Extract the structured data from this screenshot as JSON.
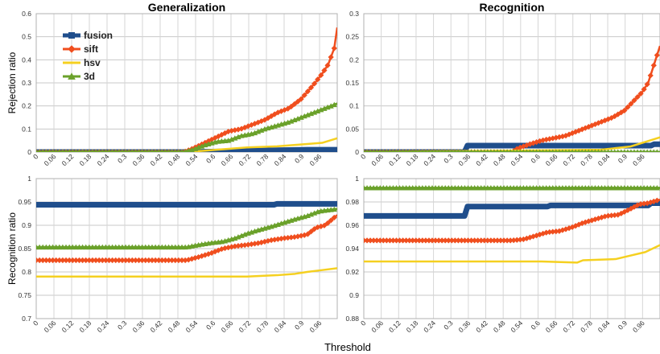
{
  "chart_data": [
    {
      "type": "line",
      "title": "Generalization",
      "xlabel": "",
      "ylabel": "Rejection ratio",
      "ylim": [
        0,
        0.6
      ],
      "yticks": [
        "0",
        "0.1",
        "0.2",
        "0.3",
        "0.4",
        "0.5",
        "0.6"
      ],
      "xlim": [
        0,
        1
      ],
      "xticks": [
        "0",
        "0.06",
        "0.12",
        "0.18",
        "0.24",
        "0.3",
        "0.36",
        "0.42",
        "0.48",
        "0.54",
        "0.6",
        "0.66",
        "0.72",
        "0.78",
        "0.84",
        "0.9",
        "0.96"
      ],
      "grid": true,
      "legend_position": "top-left",
      "series": [
        {
          "name": "fusion",
          "color": "#1f4e8c",
          "marker": "square",
          "x": [
            0,
            0.5,
            0.6,
            0.7,
            0.8,
            0.9,
            1.0
          ],
          "y": [
            0,
            0,
            0.002,
            0.005,
            0.008,
            0.01,
            0.01
          ]
        },
        {
          "name": "sift",
          "color": "#f04e1e",
          "marker": "diamond",
          "x": [
            0,
            0.49,
            0.52,
            0.56,
            0.6,
            0.64,
            0.68,
            0.72,
            0.76,
            0.8,
            0.84,
            0.88,
            0.92,
            0.95,
            0.97,
            0.99,
            1.0
          ],
          "y": [
            0,
            0,
            0.015,
            0.04,
            0.065,
            0.09,
            0.1,
            0.12,
            0.14,
            0.17,
            0.19,
            0.23,
            0.29,
            0.34,
            0.38,
            0.45,
            0.54
          ]
        },
        {
          "name": "hsv",
          "color": "#f5d020",
          "marker": "none",
          "x": [
            0,
            0.5,
            0.6,
            0.7,
            0.8,
            0.9,
            0.95,
            1.0
          ],
          "y": [
            0,
            0,
            0.01,
            0.02,
            0.025,
            0.035,
            0.04,
            0.06
          ]
        },
        {
          "name": "3d",
          "color": "#6aa12a",
          "marker": "triangle",
          "x": [
            0,
            0.49,
            0.52,
            0.56,
            0.6,
            0.64,
            0.68,
            0.72,
            0.76,
            0.8,
            0.84,
            0.88,
            0.92,
            0.96,
            1.0
          ],
          "y": [
            0,
            0,
            0.01,
            0.03,
            0.045,
            0.05,
            0.07,
            0.08,
            0.1,
            0.115,
            0.13,
            0.15,
            0.17,
            0.19,
            0.21
          ]
        }
      ]
    },
    {
      "type": "line",
      "title": "Recognition",
      "xlabel": "",
      "ylabel": "",
      "ylim": [
        0,
        0.3
      ],
      "yticks": [
        "0",
        "0.05",
        "0.1",
        "0.15",
        "0.2",
        "0.25",
        "0.3"
      ],
      "xlim": [
        0,
        1
      ],
      "xticks": [
        "0",
        "0.06",
        "0.12",
        "0.18",
        "0.24",
        "0.3",
        "0.36",
        "0.42",
        "0.48",
        "0.54",
        "0.6",
        "0.66",
        "0.72",
        "0.78",
        "0.84",
        "0.9",
        "0.96"
      ],
      "grid": true,
      "series": [
        {
          "name": "fusion",
          "color": "#1f4e8c",
          "marker": "square",
          "x": [
            0,
            0.34,
            0.35,
            0.97,
            0.98,
            1.0
          ],
          "y": [
            0,
            0,
            0.014,
            0.014,
            0.017,
            0.017
          ]
        },
        {
          "name": "sift",
          "color": "#f04e1e",
          "marker": "diamond",
          "x": [
            0,
            0.5,
            0.52,
            0.56,
            0.6,
            0.64,
            0.68,
            0.72,
            0.76,
            0.8,
            0.84,
            0.88,
            0.91,
            0.94,
            0.96,
            0.98,
            1.0
          ],
          "y": [
            0,
            0,
            0.008,
            0.017,
            0.025,
            0.03,
            0.035,
            0.045,
            0.055,
            0.065,
            0.075,
            0.09,
            0.11,
            0.13,
            0.15,
            0.19,
            0.23
          ]
        },
        {
          "name": "hsv",
          "color": "#f5d020",
          "marker": "none",
          "x": [
            0,
            0.8,
            0.9,
            0.95,
            1.0
          ],
          "y": [
            0,
            0.005,
            0.012,
            0.022,
            0.032
          ]
        },
        {
          "name": "3d",
          "color": "#6aa12a",
          "marker": "triangle",
          "x": [
            0,
            1.0
          ],
          "y": [
            0,
            0
          ]
        }
      ]
    },
    {
      "type": "line",
      "title": "",
      "xlabel": "",
      "ylabel": "Recognition ratio",
      "ylim": [
        0.7,
        1
      ],
      "yticks": [
        "0.7",
        "0.75",
        "0.8",
        "0.85",
        "0.9",
        "0.95",
        "1"
      ],
      "xlim": [
        0,
        1
      ],
      "xticks": [
        "0",
        "0.06",
        "0.12",
        "0.18",
        "0.24",
        "0.3",
        "0.36",
        "0.42",
        "0.48",
        "0.54",
        "0.6",
        "0.66",
        "0.72",
        "0.78",
        "0.84",
        "0.9",
        "0.96"
      ],
      "grid": true,
      "series": [
        {
          "name": "fusion",
          "color": "#1f4e8c",
          "marker": "square",
          "x": [
            0,
            0.79,
            0.8,
            1.0
          ],
          "y": [
            0.944,
            0.944,
            0.946,
            0.946
          ]
        },
        {
          "name": "sift",
          "color": "#f04e1e",
          "marker": "diamond",
          "x": [
            0,
            0.48,
            0.5,
            0.54,
            0.58,
            0.62,
            0.66,
            0.7,
            0.74,
            0.78,
            0.82,
            0.86,
            0.9,
            0.93,
            0.96,
            1.0
          ],
          "y": [
            0.825,
            0.825,
            0.825,
            0.832,
            0.84,
            0.85,
            0.855,
            0.858,
            0.862,
            0.868,
            0.872,
            0.875,
            0.88,
            0.895,
            0.9,
            0.922
          ]
        },
        {
          "name": "hsv",
          "color": "#f5d020",
          "marker": "none",
          "x": [
            0,
            0.7,
            0.8,
            0.86,
            0.9,
            0.95,
            1.0
          ],
          "y": [
            0.79,
            0.79,
            0.793,
            0.796,
            0.8,
            0.804,
            0.808
          ]
        },
        {
          "name": "3d",
          "color": "#6aa12a",
          "marker": "triangle",
          "x": [
            0,
            0.48,
            0.5,
            0.54,
            0.58,
            0.62,
            0.66,
            0.7,
            0.74,
            0.78,
            0.82,
            0.86,
            0.9,
            0.94,
            1.0
          ],
          "y": [
            0.853,
            0.853,
            0.853,
            0.858,
            0.862,
            0.865,
            0.872,
            0.882,
            0.89,
            0.897,
            0.905,
            0.913,
            0.92,
            0.93,
            0.935
          ]
        }
      ]
    },
    {
      "type": "line",
      "title": "",
      "xlabel": "Threshold",
      "ylabel": "",
      "ylim": [
        0.88,
        1
      ],
      "yticks": [
        "0.88",
        "0.9",
        "0.92",
        "0.94",
        "0.96",
        "0.98",
        "1"
      ],
      "xlim": [
        0,
        1
      ],
      "xticks": [
        "0",
        "0.06",
        "0.12",
        "0.18",
        "0.24",
        "0.3",
        "0.36",
        "0.42",
        "0.48",
        "0.54",
        "0.6",
        "0.66",
        "0.72",
        "0.78",
        "0.84",
        "0.9",
        "0.96"
      ],
      "grid": true,
      "series": [
        {
          "name": "fusion",
          "color": "#1f4e8c",
          "marker": "square",
          "x": [
            0,
            0.34,
            0.35,
            0.62,
            0.63,
            0.96,
            0.97,
            1.0
          ],
          "y": [
            0.968,
            0.968,
            0.976,
            0.976,
            0.977,
            0.977,
            0.979,
            0.979
          ]
        },
        {
          "name": "sift",
          "color": "#f04e1e",
          "marker": "diamond",
          "x": [
            0,
            0.5,
            0.54,
            0.58,
            0.62,
            0.66,
            0.7,
            0.74,
            0.78,
            0.82,
            0.86,
            0.9,
            0.93,
            0.96,
            1.0
          ],
          "y": [
            0.947,
            0.947,
            0.948,
            0.951,
            0.954,
            0.955,
            0.958,
            0.962,
            0.965,
            0.968,
            0.969,
            0.974,
            0.978,
            0.979,
            0.982
          ]
        },
        {
          "name": "hsv",
          "color": "#f5d020",
          "marker": "none",
          "x": [
            0,
            0.6,
            0.72,
            0.74,
            0.85,
            0.9,
            0.95,
            1.0
          ],
          "y": [
            0.929,
            0.929,
            0.928,
            0.93,
            0.931,
            0.934,
            0.937,
            0.943
          ]
        },
        {
          "name": "3d",
          "color": "#6aa12a",
          "marker": "triangle",
          "x": [
            0,
            1.0
          ],
          "y": [
            0.992,
            0.992
          ]
        }
      ]
    }
  ]
}
